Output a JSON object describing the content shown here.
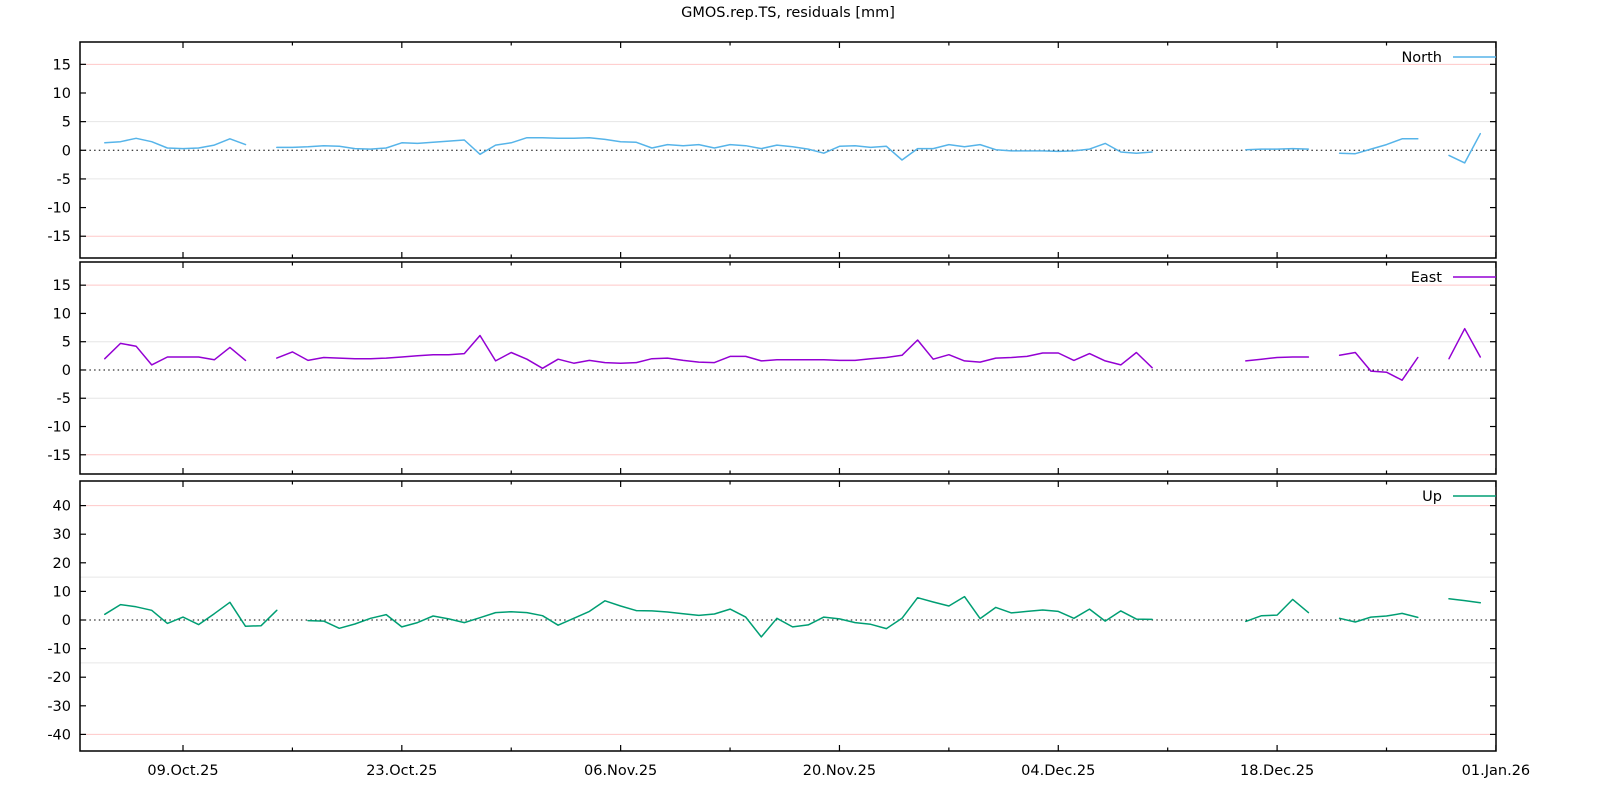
{
  "title": "GMOS.rep.TS, residuals [mm]",
  "chart_data": {
    "type": "line",
    "description": "Three stacked time-series panels of GNSS coordinate residuals in mm (North, East, Up) vs date",
    "x_axis": {
      "unit": "date",
      "range_start": "02.Oct.25",
      "range_end": "01.Jan.26",
      "major_ticks": [
        {
          "day": 7,
          "label": "09.Oct.25"
        },
        {
          "day": 21,
          "label": "23.Oct.25"
        },
        {
          "day": 35,
          "label": "06.Nov.25"
        },
        {
          "day": 49,
          "label": "20.Nov.25"
        },
        {
          "day": 63,
          "label": "04.Dec.25"
        },
        {
          "day": 77,
          "label": "18.Dec.25"
        },
        {
          "day": 91,
          "label": "01.Jan.26"
        }
      ],
      "minor_tick_days": [
        14,
        28,
        42,
        56,
        70,
        84
      ]
    },
    "grid": {
      "zero_line_style": "black dotted",
      "soft_limit_color": "#e6e6e6",
      "hard_limit_color": "#ffc8c8"
    },
    "legend_position": "top-right-inside",
    "panels": [
      {
        "name": "North",
        "color": "#56b4e9",
        "ylim": [
          -18.8,
          18.9
        ],
        "yticks": [
          -15,
          -10,
          -5,
          0,
          5,
          10,
          15
        ],
        "red_gridlines": [
          -15,
          15
        ],
        "gray_gridlines": [
          -5,
          5
        ],
        "zero_line": true,
        "segments": [
          {
            "start_day": 2,
            "values": [
              1.3,
              1.5,
              2.1,
              1.5,
              0.4,
              0.3,
              0.4,
              0.9,
              2.0,
              1.0
            ]
          },
          {
            "start_day": 13,
            "values": [
              0.5,
              0.5,
              0.6,
              0.8,
              0.7,
              0.3,
              0.2,
              0.4,
              1.3,
              1.2,
              1.4,
              1.6,
              1.8,
              -0.7,
              0.9,
              1.3,
              2.2,
              2.2,
              2.1,
              2.1,
              2.2,
              1.9,
              1.5,
              1.4,
              0.4,
              1.0,
              0.8,
              1.0,
              0.4,
              1.0,
              0.8,
              0.3,
              0.9,
              0.6,
              0.2,
              -0.5,
              0.7,
              0.8,
              0.5,
              0.7,
              -1.7,
              0.3,
              0.3,
              1.0,
              0.6,
              1.0,
              0.1,
              -0.1,
              -0.1,
              -0.1,
              -0.2,
              -0.1,
              0.2,
              1.2,
              -0.3,
              -0.5,
              -0.3
            ]
          },
          {
            "start_day": 75,
            "values": [
              0.1,
              0.2,
              0.2,
              0.3,
              0.2
            ]
          },
          {
            "start_day": 81,
            "values": [
              -0.5,
              -0.6,
              0.2,
              1.0,
              2.0,
              2.0
            ]
          },
          {
            "start_day": 88,
            "values": [
              -0.9,
              -2.2,
              2.9
            ]
          }
        ]
      },
      {
        "name": "East",
        "color": "#9400d3",
        "ylim": [
          -18.4,
          19.1
        ],
        "yticks": [
          -15,
          -10,
          -5,
          0,
          5,
          10,
          15
        ],
        "red_gridlines": [
          -15,
          15
        ],
        "gray_gridlines": [
          -5,
          5
        ],
        "zero_line": true,
        "segments": [
          {
            "start_day": 2,
            "values": [
              2.0,
              4.7,
              4.2,
              0.9,
              2.3,
              2.3,
              2.3,
              1.8,
              4.0,
              1.7
            ]
          },
          {
            "start_day": 13,
            "values": [
              2.1,
              3.2,
              1.7,
              2.2,
              2.1,
              2.0,
              2.0,
              2.1,
              2.3,
              2.5,
              2.7,
              2.7,
              2.9,
              6.1,
              1.6,
              3.1,
              1.9,
              0.3,
              1.9,
              1.2,
              1.7,
              1.3,
              1.2,
              1.3,
              2.0,
              2.1,
              1.7,
              1.4,
              1.3,
              2.4,
              2.4,
              1.6,
              1.8,
              1.8,
              1.8,
              1.8,
              1.7,
              1.7,
              2.0,
              2.2,
              2.6,
              5.3,
              1.9,
              2.7,
              1.6,
              1.4,
              2.1,
              2.2,
              2.4,
              3.0,
              3.0,
              1.7,
              2.9,
              1.6,
              0.9,
              3.1,
              0.4
            ]
          },
          {
            "start_day": 75,
            "values": [
              1.6,
              1.9,
              2.2,
              2.3,
              2.3
            ]
          },
          {
            "start_day": 81,
            "values": [
              2.6,
              3.1,
              -0.2,
              -0.4,
              -1.8,
              2.2
            ]
          },
          {
            "start_day": 88,
            "values": [
              2.0,
              7.3,
              2.3
            ]
          }
        ]
      },
      {
        "name": "Up",
        "color": "#009e73",
        "ylim": [
          -45.8,
          48.6
        ],
        "yticks": [
          -40,
          -30,
          -20,
          -10,
          0,
          10,
          20,
          30,
          40
        ],
        "red_gridlines": [
          -40,
          40
        ],
        "gray_gridlines": [
          -15,
          15
        ],
        "zero_line": true,
        "segments": [
          {
            "start_day": 2,
            "values": [
              2.0,
              5.4,
              4.6,
              3.4,
              -1.2,
              1.0,
              -1.6,
              2.2,
              6.2,
              -2.2,
              -2.0,
              3.4
            ]
          },
          {
            "start_day": 15,
            "values": [
              -0.2,
              -0.4,
              -2.9,
              -1.4,
              0.6,
              1.9,
              -2.4,
              -0.9,
              1.4,
              0.4,
              -0.9,
              0.8,
              2.6,
              2.9,
              2.6,
              1.5,
              -1.8,
              0.6,
              3.0,
              6.7,
              4.9,
              3.3,
              3.2,
              2.8,
              2.2,
              1.6,
              2.1,
              3.8,
              1.0,
              -5.9,
              0.6,
              -2.4,
              -1.7,
              1.0,
              0.4,
              -0.9,
              -1.5,
              -3.0,
              0.6,
              7.8,
              6.3,
              4.9,
              8.2,
              0.5,
              4.4,
              2.5,
              3.0,
              3.5,
              3.0,
              0.6,
              3.8,
              -0.4,
              3.2,
              0.3,
              0.2
            ]
          },
          {
            "start_day": 75,
            "values": [
              -0.5,
              1.5,
              1.7,
              7.2,
              2.6
            ]
          },
          {
            "start_day": 81,
            "values": [
              0.6,
              -0.7,
              1.0,
              1.4,
              2.3,
              0.9
            ]
          },
          {
            "start_day": 88,
            "values": [
              7.4,
              6.8,
              6.0
            ]
          }
        ]
      }
    ]
  }
}
